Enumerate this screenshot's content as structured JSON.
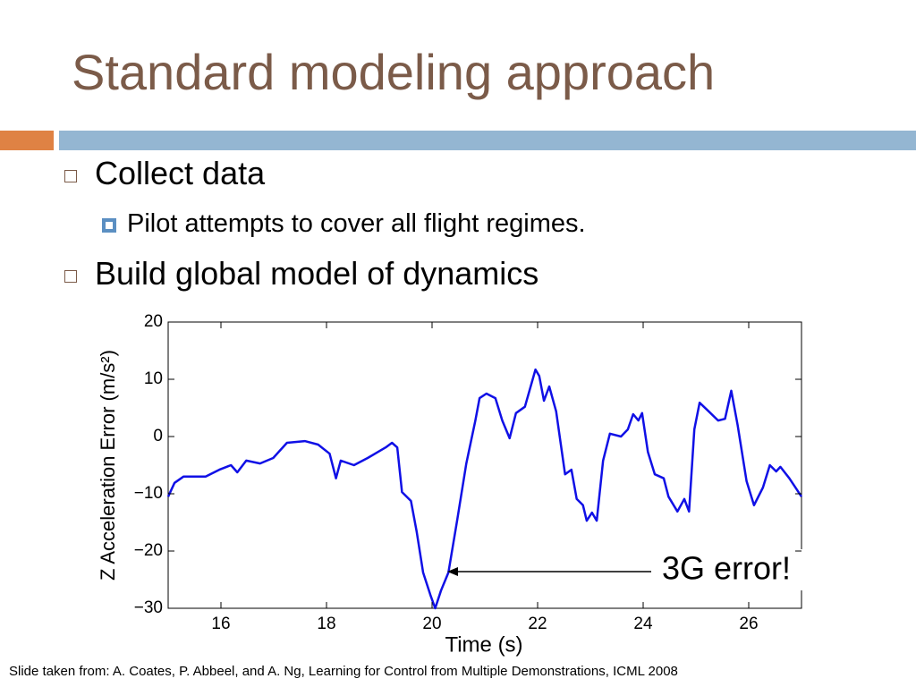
{
  "header": {
    "title": "Standard modeling approach"
  },
  "bullets": [
    {
      "text": "Collect data",
      "sub": [
        "Pilot attempts to cover all flight regimes."
      ]
    },
    {
      "text": "Build global model of dynamics"
    }
  ],
  "footer": "Slide taken from: A. Coates, P. Abbeel, and A. Ng, Learning for Control from Multiple Demonstrations, ICML 2008",
  "chart_data": {
    "type": "line",
    "x_label": "Time (s)",
    "y_label": "Z Acceleration Error (m/s²)",
    "annotation": "3G error!",
    "xlim": [
      15,
      27
    ],
    "ylim": [
      -30,
      20
    ],
    "xticks": [
      16,
      18,
      20,
      22,
      24,
      26
    ],
    "yticks": [
      {
        "value": -30,
        "label": "−30"
      },
      {
        "value": -20,
        "label": "−20"
      },
      {
        "value": -10,
        "label": "−10"
      },
      0,
      10,
      20
    ],
    "series": [
      {
        "color": "#1010e6",
        "x": [
          15.0,
          15.12,
          15.29,
          15.46,
          15.71,
          15.97,
          16.19,
          16.31,
          16.48,
          16.74,
          16.99,
          17.25,
          17.59,
          17.84,
          18.06,
          18.18,
          18.27,
          18.52,
          18.78,
          19.12,
          19.24,
          19.34,
          19.43,
          19.6,
          19.71,
          19.83,
          19.97,
          20.06,
          20.17,
          20.31,
          20.48,
          20.65,
          20.82,
          20.9,
          21.03,
          21.2,
          21.33,
          21.47,
          21.59,
          21.76,
          21.96,
          22.03,
          22.12,
          22.22,
          22.35,
          22.52,
          22.64,
          22.74,
          22.86,
          22.93,
          23.03,
          23.12,
          23.24,
          23.37,
          23.58,
          23.71,
          23.81,
          23.91,
          23.98,
          24.09,
          24.22,
          24.39,
          24.48,
          24.65,
          24.78,
          24.87,
          24.97,
          25.07,
          25.24,
          25.42,
          25.55,
          25.67,
          25.79,
          25.96,
          26.1,
          26.27,
          26.4,
          26.52,
          26.6,
          26.77,
          27.0
        ],
        "values": [
          -10.5,
          -8.1,
          -7.0,
          -7.0,
          -7.0,
          -5.8,
          -5.0,
          -6.25,
          -4.2,
          -4.7,
          -3.75,
          -1.1,
          -0.8,
          -1.4,
          -3.0,
          -7.3,
          -4.2,
          -5.0,
          -3.75,
          -1.9,
          -1.1,
          -1.9,
          -9.7,
          -11.25,
          -16.7,
          -23.75,
          -27.7,
          -30.0,
          -26.9,
          -23.75,
          -14.4,
          -4.7,
          2.8,
          6.7,
          7.5,
          6.7,
          2.8,
          -0.3,
          4.1,
          5.2,
          11.7,
          10.6,
          6.25,
          8.75,
          4.4,
          -6.6,
          -5.8,
          -10.9,
          -12.0,
          -14.7,
          -13.3,
          -14.7,
          -4.2,
          0.5,
          0.0,
          1.25,
          3.9,
          2.8,
          4.1,
          -2.7,
          -6.6,
          -7.3,
          -10.5,
          -13.1,
          -10.9,
          -13.1,
          1.25,
          5.9,
          4.4,
          2.8,
          3.1,
          8.0,
          2.0,
          -7.8,
          -12.0,
          -8.9,
          -5.0,
          -6.1,
          -5.3,
          -7.3,
          -10.5
        ]
      }
    ]
  }
}
